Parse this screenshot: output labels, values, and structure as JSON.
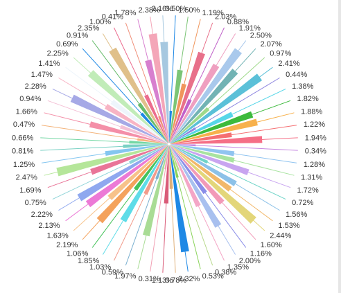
{
  "chart_data": {
    "type": "pie",
    "variant": "nightingale-rose",
    "legend": "none",
    "slices": [
      {
        "label": "0.50%",
        "value": 0.5,
        "color": "#1e88e5"
      },
      {
        "label": "1.50%",
        "value": 1.5,
        "color": "#7cc576"
      },
      {
        "label": "1.19%",
        "value": 1.19,
        "color": "#f0955b"
      },
      {
        "label": "2.03%",
        "value": 2.03,
        "color": "#e8708a"
      },
      {
        "label": "0.88%",
        "value": 0.88,
        "color": "#c061c9"
      },
      {
        "label": "1.91%",
        "value": 1.91,
        "color": "#ef9fc0"
      },
      {
        "label": "2.50%",
        "value": 2.5,
        "color": "#a9c9ec"
      },
      {
        "label": "2.07%",
        "value": 2.07,
        "color": "#72b3b4"
      },
      {
        "label": "0.97%",
        "value": 0.97,
        "color": "#9ed98a"
      },
      {
        "label": "2.41%",
        "value": 2.41,
        "color": "#5bc0d8"
      },
      {
        "label": "0.44%",
        "value": 0.44,
        "color": "#8f87e0"
      },
      {
        "label": "1.38%",
        "value": 1.38,
        "color": "#56d6e8"
      },
      {
        "label": "1.82%",
        "value": 1.82,
        "color": "#3cba3c"
      },
      {
        "label": "1.88%",
        "value": 1.88,
        "color": "#f7b14c"
      },
      {
        "label": "1.22%",
        "value": 1.22,
        "color": "#f56f72"
      },
      {
        "label": "1.94%",
        "value": 1.94,
        "color": "#f56f86"
      },
      {
        "label": "0.34%",
        "value": 0.34,
        "color": "#c586e0"
      },
      {
        "label": "1.28%",
        "value": 1.28,
        "color": "#90c4f0"
      },
      {
        "label": "1.31%",
        "value": 1.31,
        "color": "#a8e3a0"
      },
      {
        "label": "1.72%",
        "value": 1.72,
        "color": "#c8a5f0"
      },
      {
        "label": "0.72%",
        "value": 0.72,
        "color": "#6fd4c8"
      },
      {
        "label": "1.56%",
        "value": 1.56,
        "color": "#8cc1e8"
      },
      {
        "label": "1.53%",
        "value": 1.53,
        "color": "#f2b86b"
      },
      {
        "label": "2.44%",
        "value": 2.44,
        "color": "#e3d67a"
      },
      {
        "label": "1.60%",
        "value": 1.6,
        "color": "#f29ab8"
      },
      {
        "label": "1.16%",
        "value": 1.16,
        "color": "#8a8de8"
      },
      {
        "label": "2.00%",
        "value": 2.0,
        "color": "#a8c0ef"
      },
      {
        "label": "1.35%",
        "value": 1.35,
        "color": "#f4a6c6"
      },
      {
        "label": "0.38%",
        "value": 0.38,
        "color": "#b8d98c"
      },
      {
        "label": "0.53%",
        "value": 0.53,
        "color": "#8ad35a"
      },
      {
        "label": "2.32%",
        "value": 2.32,
        "color": "#1e88e5"
      },
      {
        "label": "0.78%",
        "value": 0.78,
        "color": "#e0b07a"
      },
      {
        "label": "1.13%",
        "value": 1.13,
        "color": "#d95b78"
      },
      {
        "label": "0.31%",
        "value": 0.31,
        "color": "#f2a0b4"
      },
      {
        "label": "1.97%",
        "value": 1.97,
        "color": "#a9dc95"
      },
      {
        "label": "0.59%",
        "value": 0.59,
        "color": "#7ab0d0"
      },
      {
        "label": "1.03%",
        "value": 1.03,
        "color": "#f29b8b"
      },
      {
        "label": "1.85%",
        "value": 1.85,
        "color": "#5edce8"
      },
      {
        "label": "1.06%",
        "value": 1.06,
        "color": "#44c25a"
      },
      {
        "label": "2.19%",
        "value": 2.19,
        "color": "#f4a25c"
      },
      {
        "label": "1.63%",
        "value": 1.63,
        "color": "#f7c28a"
      },
      {
        "label": "2.13%",
        "value": 2.13,
        "color": "#ec7ad6"
      },
      {
        "label": "2.22%",
        "value": 2.22,
        "color": "#8fa8ef"
      },
      {
        "label": "0.75%",
        "value": 0.75,
        "color": "#8fd4d8"
      },
      {
        "label": "1.69%",
        "value": 1.69,
        "color": "#e97598"
      },
      {
        "label": "2.47%",
        "value": 2.47,
        "color": "#b5e69a"
      },
      {
        "label": "1.25%",
        "value": 1.25,
        "color": "#84c6f0"
      },
      {
        "label": "0.81%",
        "value": 0.81,
        "color": "#7ad1c4"
      },
      {
        "label": "0.66%",
        "value": 0.66,
        "color": "#74d7a4"
      },
      {
        "label": "0.47%",
        "value": 0.47,
        "color": "#f3b37a"
      },
      {
        "label": "1.66%",
        "value": 1.66,
        "color": "#f48fa8"
      },
      {
        "label": "0.94%",
        "value": 0.94,
        "color": "#f4c1d6"
      },
      {
        "label": "2.28%",
        "value": 2.28,
        "color": "#a6a9e6"
      },
      {
        "label": "1.47%",
        "value": 1.47,
        "color": "#f8b4c4"
      },
      {
        "label": "1.41%",
        "value": 1.41,
        "color": "#eef5fb"
      },
      {
        "label": "2.25%",
        "value": 2.25,
        "color": "#c1ecb8"
      },
      {
        "label": "0.69%",
        "value": 0.69,
        "color": "#1e88e5"
      },
      {
        "label": "0.91%",
        "value": 0.91,
        "color": "#66bb6a"
      },
      {
        "label": "2.35%",
        "value": 2.35,
        "color": "#e0c08a"
      },
      {
        "label": "1.00%",
        "value": 1.0,
        "color": "#ec6c8e"
      },
      {
        "label": "0.41%",
        "value": 0.41,
        "color": "#f08e78"
      },
      {
        "label": "1.78%",
        "value": 1.78,
        "color": "#d77fcf"
      },
      {
        "label": "2.38%",
        "value": 2.38,
        "color": "#f4a6b8"
      },
      {
        "label": "2.16%",
        "value": 2.16,
        "color": "#a6c8e0"
      }
    ]
  }
}
